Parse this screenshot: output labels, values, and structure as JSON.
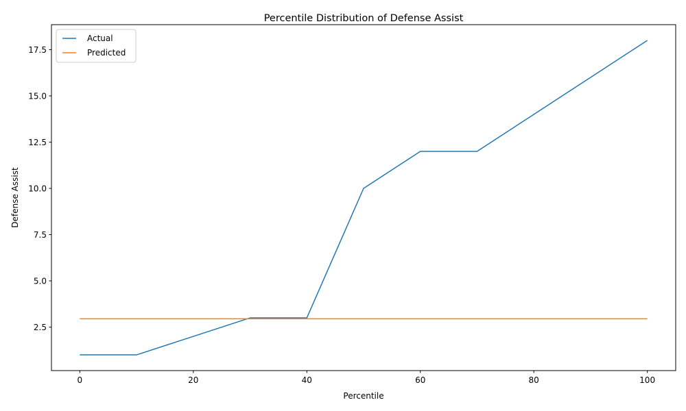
{
  "chart_data": {
    "type": "line",
    "title": "Percentile Distribution of Defense Assist",
    "xlabel": "Percentile",
    "ylabel": "Defense Assist",
    "x": [
      0,
      10,
      20,
      30,
      40,
      50,
      60,
      70,
      80,
      90,
      100
    ],
    "series": [
      {
        "name": "Actual",
        "color": "#1f77b4",
        "values": [
          1,
          1,
          2,
          3,
          3,
          10,
          12,
          12,
          14,
          16,
          18
        ]
      },
      {
        "name": "Predicted",
        "color": "#ff7f0e",
        "values": [
          2.95,
          2.95,
          2.95,
          2.95,
          2.95,
          2.95,
          2.95,
          2.95,
          2.95,
          2.95,
          2.95
        ]
      }
    ],
    "xlim": [
      -5,
      105
    ],
    "ylim": [
      0.15,
      18.85
    ],
    "x_ticks": [
      0,
      20,
      40,
      60,
      80,
      100
    ],
    "y_ticks": [
      2.5,
      5.0,
      7.5,
      10.0,
      12.5,
      15.0,
      17.5
    ],
    "x_tick_labels": [
      "0",
      "20",
      "40",
      "60",
      "80",
      "100"
    ],
    "y_tick_labels": [
      "2.5",
      "5.0",
      "7.5",
      "10.0",
      "12.5",
      "15.0",
      "17.5"
    ],
    "grid": false,
    "legend_position": "top-left"
  }
}
